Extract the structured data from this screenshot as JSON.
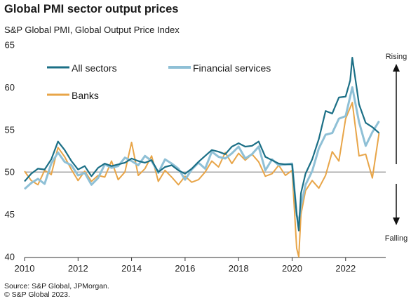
{
  "title": "Global PMI sector output prices",
  "subtitle": "S&P Global  PMI, Global  Output Price Index",
  "source": [
    "Source: S&P Global, JPMorgan.",
    "© S&P Global 2023."
  ],
  "annotations": {
    "rising": "Rising",
    "falling": "Falling"
  },
  "chart_data": {
    "type": "line",
    "title": "Global PMI sector output prices",
    "subtitle": "S&P Global  PMI, Global  Output Price Index",
    "xlabel": "",
    "ylabel": "",
    "xlim": [
      2010,
      2023.5
    ],
    "ylim": [
      40,
      65
    ],
    "x_ticks": [
      "2010",
      "2012",
      "2014",
      "2016",
      "2018",
      "2020",
      "2022"
    ],
    "y_ticks": [
      "40",
      "45",
      "50",
      "55",
      "60",
      "65"
    ],
    "reference_line": 50,
    "grid": false,
    "legend_placement": "top-left",
    "series": [
      {
        "name": "All sectors",
        "color": "#1b6f86",
        "x": [
          2010,
          2010.25,
          2010.5,
          2010.75,
          2011,
          2011.25,
          2011.5,
          2011.75,
          2012,
          2012.25,
          2012.5,
          2012.75,
          2013,
          2013.25,
          2013.5,
          2013.75,
          2014,
          2014.25,
          2014.5,
          2014.75,
          2015,
          2015.25,
          2015.5,
          2015.75,
          2016,
          2016.25,
          2016.5,
          2016.75,
          2017,
          2017.25,
          2017.5,
          2017.75,
          2018,
          2018.25,
          2018.5,
          2018.75,
          2019,
          2019.25,
          2019.5,
          2019.75,
          2020,
          2020.17,
          2020.25,
          2020.33,
          2020.5,
          2020.75,
          2021,
          2021.25,
          2021.5,
          2021.75,
          2022,
          2022.17,
          2022.25,
          2022.5,
          2022.75,
          2023,
          2023.25
        ],
        "values": [
          48.9,
          49.8,
          50.4,
          50.3,
          51.5,
          53.6,
          52.6,
          51.3,
          50.3,
          50.7,
          49.5,
          50.5,
          51.0,
          50.7,
          50.9,
          51.1,
          51.6,
          51.3,
          51.1,
          51.4,
          50.0,
          50.6,
          50.8,
          50.2,
          49.8,
          50.4,
          51.2,
          51.9,
          52.6,
          52.4,
          52.1,
          53.0,
          53.4,
          53.0,
          53.1,
          53.6,
          51.8,
          51.4,
          51.0,
          50.9,
          50.9,
          45.0,
          43.1,
          47.5,
          49.8,
          51.5,
          53.9,
          57.2,
          56.9,
          58.8,
          58.9,
          60.8,
          63.5,
          58.0,
          55.8,
          55.3,
          54.6
        ]
      },
      {
        "name": "Financial services",
        "color": "#8fc0d6",
        "x": [
          2010,
          2010.25,
          2010.5,
          2010.75,
          2011,
          2011.25,
          2011.5,
          2011.75,
          2012,
          2012.25,
          2012.5,
          2012.75,
          2013,
          2013.25,
          2013.5,
          2013.75,
          2014,
          2014.25,
          2014.5,
          2014.75,
          2015,
          2015.25,
          2015.5,
          2015.75,
          2016,
          2016.25,
          2016.5,
          2016.75,
          2017,
          2017.25,
          2017.5,
          2017.75,
          2018,
          2018.25,
          2018.5,
          2018.75,
          2019,
          2019.25,
          2019.5,
          2019.75,
          2020,
          2020.17,
          2020.25,
          2020.33,
          2020.5,
          2020.75,
          2021,
          2021.25,
          2021.5,
          2021.75,
          2022,
          2022.25,
          2022.5,
          2022.75,
          2023,
          2023.25
        ],
        "values": [
          48.0,
          48.7,
          49.2,
          48.6,
          51.0,
          52.3,
          51.2,
          50.8,
          49.6,
          49.9,
          48.5,
          49.3,
          50.9,
          50.5,
          50.7,
          51.7,
          51.3,
          50.8,
          51.9,
          51.3,
          49.9,
          51.5,
          51.0,
          50.4,
          49.1,
          50.3,
          51.1,
          50.4,
          52.4,
          51.8,
          51.6,
          52.2,
          53.0,
          51.6,
          52.1,
          53.0,
          50.2,
          51.5,
          50.8,
          50.9,
          51.0,
          44.9,
          44.1,
          46.0,
          48.5,
          50.1,
          52.8,
          54.4,
          54.6,
          56.3,
          56.6,
          60.0,
          55.9,
          53.1,
          54.7,
          56.0
        ]
      },
      {
        "name": "Banks",
        "color": "#e8a548",
        "x": [
          2010,
          2010.25,
          2010.5,
          2010.75,
          2011,
          2011.25,
          2011.5,
          2011.75,
          2012,
          2012.25,
          2012.5,
          2012.75,
          2013,
          2013.25,
          2013.5,
          2013.75,
          2014,
          2014.25,
          2014.5,
          2014.75,
          2015,
          2015.25,
          2015.5,
          2015.75,
          2016,
          2016.25,
          2016.5,
          2016.75,
          2017,
          2017.25,
          2017.5,
          2017.75,
          2018,
          2018.25,
          2018.5,
          2018.75,
          2019,
          2019.25,
          2019.5,
          2019.75,
          2020,
          2020.17,
          2020.25,
          2020.33,
          2020.5,
          2020.75,
          2021,
          2021.25,
          2021.5,
          2021.75,
          2022,
          2022.25,
          2022.5,
          2022.75,
          2023,
          2023.25
        ],
        "values": [
          50.1,
          49.0,
          48.5,
          50.2,
          49.7,
          52.9,
          51.8,
          50.3,
          49.0,
          50.1,
          48.9,
          49.6,
          49.4,
          51.3,
          49.1,
          50.0,
          53.5,
          49.6,
          50.4,
          51.9,
          48.9,
          50.2,
          49.4,
          48.5,
          49.5,
          48.8,
          49.1,
          50.0,
          51.3,
          50.6,
          52.3,
          51.0,
          52.2,
          51.4,
          52.1,
          51.2,
          49.5,
          49.8,
          50.8,
          49.6,
          50.2,
          41.0,
          40.0,
          45.0,
          47.8,
          49.0,
          48.1,
          49.6,
          52.4,
          51.3,
          56.3,
          58.2,
          51.9,
          52.1,
          49.3,
          54.6
        ]
      }
    ]
  }
}
